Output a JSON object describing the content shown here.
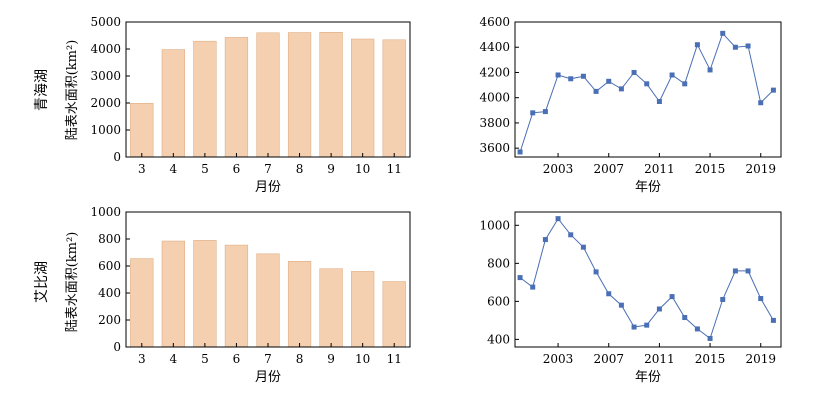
{
  "row_labels": [
    "青海湖",
    "艾比湖"
  ],
  "chart_data": [
    {
      "type": "bar",
      "categories": [
        "3",
        "4",
        "5",
        "6",
        "7",
        "8",
        "9",
        "10",
        "11"
      ],
      "values": [
        1990,
        3980,
        4290,
        4430,
        4600,
        4610,
        4620,
        4370,
        4340
      ],
      "xlabel": "月份",
      "ylabel": "陆表水面积(km²)",
      "ylim": [
        0,
        5000
      ],
      "yticks": [
        "0",
        "1000",
        "2000",
        "3000",
        "4000",
        "5000"
      ],
      "bar_color": "#f5d0b0",
      "bar_edge_color": "#d9a679"
    },
    {
      "type": "line",
      "x": [
        2000,
        2001,
        2002,
        2003,
        2004,
        2005,
        2006,
        2007,
        2008,
        2009,
        2010,
        2011,
        2012,
        2013,
        2014,
        2015,
        2016,
        2017,
        2018,
        2019,
        2020
      ],
      "values": [
        3570,
        3880,
        3890,
        4180,
        4150,
        4170,
        4050,
        4130,
        4070,
        4200,
        4110,
        3970,
        4180,
        4110,
        4420,
        4220,
        4510,
        4400,
        4410,
        3960,
        4060
      ],
      "xlabel": "年份",
      "ylabel": "",
      "xlim": [
        1999.6,
        2020.6
      ],
      "ylim": [
        3530,
        4600
      ],
      "xticks": [
        "2003",
        "2007",
        "2011",
        "2015",
        "2019"
      ],
      "yticks": [
        "3600",
        "3800",
        "4000",
        "4200",
        "4400",
        "4600"
      ],
      "line_color": "#4a6fb5",
      "marker": "square"
    },
    {
      "type": "bar",
      "categories": [
        "3",
        "4",
        "5",
        "6",
        "7",
        "8",
        "9",
        "10",
        "11"
      ],
      "values": [
        655,
        785,
        790,
        755,
        690,
        635,
        580,
        560,
        485
      ],
      "xlabel": "月份",
      "ylabel": "陆表水面积(km²)",
      "ylim": [
        0,
        1000
      ],
      "yticks": [
        "0",
        "200",
        "400",
        "600",
        "800",
        "1000"
      ],
      "bar_color": "#f5d0b0",
      "bar_edge_color": "#d9a679"
    },
    {
      "type": "line",
      "x": [
        2000,
        2001,
        2002,
        2003,
        2004,
        2005,
        2006,
        2007,
        2008,
        2009,
        2010,
        2011,
        2012,
        2013,
        2014,
        2015,
        2016,
        2017,
        2018,
        2019,
        2020
      ],
      "values": [
        725,
        675,
        925,
        1035,
        950,
        885,
        755,
        640,
        580,
        465,
        475,
        560,
        625,
        515,
        455,
        405,
        610,
        760,
        760,
        615,
        500
      ],
      "xlabel": "年份",
      "ylabel": "",
      "xlim": [
        1999.6,
        2020.6
      ],
      "ylim": [
        360,
        1070
      ],
      "xticks": [
        "2003",
        "2007",
        "2011",
        "2015",
        "2019"
      ],
      "yticks": [
        "400",
        "600",
        "800",
        "1000"
      ],
      "line_color": "#4a6fb5",
      "marker": "square"
    }
  ]
}
